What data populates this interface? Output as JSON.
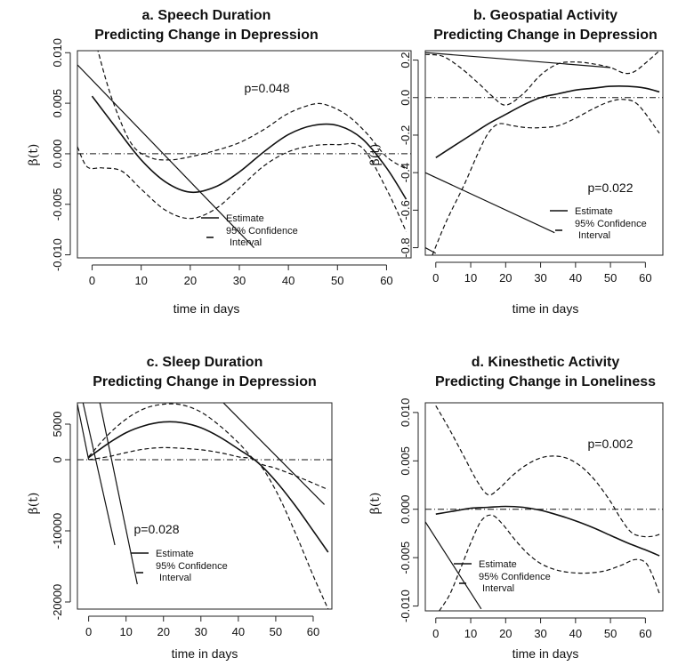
{
  "chart_data": [
    {
      "type": "line",
      "panel": "a",
      "title": [
        "a. Speech Duration",
        "Predicting Change in Depression"
      ],
      "xlabel": "time in days",
      "ylabel": "β(t)",
      "xlim": [
        -3,
        65
      ],
      "ylim": [
        -0.0103,
        0.0102
      ],
      "xticks": [
        0,
        10,
        20,
        30,
        40,
        50,
        60
      ],
      "yticks": [
        -0.01,
        -0.005,
        0.0,
        0.005,
        0.01
      ],
      "ytick_labels": [
        "-0.010",
        "-0.005",
        "0.000",
        "0.005",
        "0.010"
      ],
      "reference_line": 0,
      "annotation": "p=0.048",
      "legend": {
        "estimate": "Estimate",
        "ci": [
          "95% Confidence",
          "Interval"
        ]
      },
      "series": [
        {
          "name": "Estimate",
          "style": "solid",
          "x": [
            0,
            5,
            10,
            15,
            20,
            25,
            30,
            35,
            40,
            45,
            50,
            55,
            60,
            64
          ],
          "y": [
            0.0057,
            0.0025,
            -0.0006,
            -0.0028,
            -0.0038,
            -0.0033,
            -0.0018,
            0.0002,
            0.0019,
            0.0028,
            0.0028,
            0.0015,
            -0.0014,
            -0.0045
          ]
        },
        {
          "name": "95% Confidence Interval (upper)",
          "style": "dashed",
          "x": [
            1,
            4,
            8,
            12,
            16,
            20,
            25,
            30,
            35,
            40,
            45,
            48,
            52,
            56,
            60,
            64
          ],
          "y": [
            0.0105,
            0.0055,
            0.001,
            -0.0004,
            -0.0006,
            -0.0003,
            0.0003,
            0.0011,
            0.0024,
            0.004,
            0.0049,
            0.0048,
            0.0038,
            0.002,
            -0.0003,
            -0.0015
          ]
        },
        {
          "name": "95% Confidence Interval (lower)",
          "style": "dashed",
          "x": [
            -3,
            -1,
            2,
            6,
            10,
            15,
            20,
            25,
            30,
            35,
            40,
            45,
            50,
            55,
            60,
            64
          ],
          "y": [
            0.0007,
            -0.0013,
            -0.0014,
            -0.0017,
            -0.0035,
            -0.0056,
            -0.0064,
            -0.0055,
            -0.0034,
            -0.0012,
            0.0002,
            0.0008,
            0.0009,
            0.0006,
            -0.0035,
            -0.0077
          ]
        }
      ],
      "extra_lines": [
        {
          "style": "solid",
          "x": [
            -3,
            33
          ],
          "y": [
            0.0088,
            -0.0093
          ]
        }
      ]
    },
    {
      "type": "line",
      "panel": "b",
      "title": [
        "b. Geospatial Activity",
        "Predicting Change in Depression"
      ],
      "xlabel": "time in days",
      "ylabel": "β(t)",
      "xlim": [
        -3,
        65
      ],
      "ylim": [
        -0.84,
        0.25
      ],
      "xticks": [
        0,
        10,
        20,
        30,
        40,
        50,
        60
      ],
      "yticks": [
        -0.8,
        -0.6,
        -0.4,
        -0.2,
        0.0,
        0.2
      ],
      "ytick_labels": [
        "-0.8",
        "-0.6",
        "-0.4",
        "-0.2",
        "0.0",
        "0.2"
      ],
      "reference_line": 0,
      "annotation": "p=0.022",
      "legend": {
        "estimate": "Estimate",
        "ci": [
          "95% Confidence",
          "Interval"
        ]
      },
      "series": [
        {
          "name": "Estimate",
          "style": "solid",
          "x": [
            0,
            5,
            10,
            15,
            20,
            25,
            30,
            35,
            40,
            45,
            50,
            55,
            60,
            64
          ],
          "y": [
            -0.32,
            -0.26,
            -0.2,
            -0.14,
            -0.09,
            -0.04,
            0.0,
            0.02,
            0.04,
            0.05,
            0.06,
            0.06,
            0.05,
            0.03
          ]
        },
        {
          "name": "95% Confidence Interval (upper)",
          "style": "dashed",
          "x": [
            -3,
            2,
            7,
            12,
            16,
            20,
            25,
            30,
            35,
            40,
            45,
            50,
            54,
            57,
            61,
            64
          ],
          "y": [
            0.23,
            0.22,
            0.16,
            0.08,
            0.01,
            -0.04,
            0.02,
            0.12,
            0.18,
            0.19,
            0.18,
            0.16,
            0.13,
            0.14,
            0.2,
            0.25
          ]
        },
        {
          "name": "95% Confidence Interval (lower)",
          "style": "dashed",
          "x": [
            -1,
            3,
            8,
            12,
            15,
            18,
            22,
            26,
            30,
            35,
            40,
            45,
            50,
            54,
            58,
            64
          ],
          "y": [
            -0.84,
            -0.66,
            -0.47,
            -0.3,
            -0.19,
            -0.14,
            -0.15,
            -0.16,
            -0.16,
            -0.15,
            -0.11,
            -0.06,
            -0.02,
            -0.01,
            -0.04,
            -0.19
          ]
        }
      ],
      "extra_lines": [
        {
          "style": "solid",
          "x": [
            -3,
            50
          ],
          "y": [
            0.24,
            0.16
          ]
        },
        {
          "style": "solid",
          "x": [
            -3,
            34
          ],
          "y": [
            -0.4,
            -0.72
          ]
        },
        {
          "style": "solid",
          "x": [
            -3,
            0
          ],
          "y": [
            -0.8,
            -0.83
          ]
        }
      ]
    },
    {
      "type": "line",
      "panel": "c",
      "title": [
        "c. Sleep Duration",
        "Predicting Change in Depression"
      ],
      "xlabel": "time in days",
      "ylabel": "β(t)",
      "xlim": [
        -3,
        65
      ],
      "ylim": [
        -21000,
        8000
      ],
      "xticks": [
        0,
        10,
        20,
        30,
        40,
        50,
        60
      ],
      "yticks": [
        -20000,
        -10000,
        0,
        5000
      ],
      "ytick_labels": [
        "-20000",
        "-10000",
        "0",
        "5000"
      ],
      "reference_line": 0,
      "annotation": "p=0.028",
      "legend": {
        "estimate": "Estimate",
        "ci": [
          "95% Confidence",
          "Interval"
        ]
      },
      "series": [
        {
          "name": "Estimate",
          "style": "solid",
          "x": [
            0,
            5,
            10,
            15,
            20,
            25,
            30,
            35,
            40,
            45,
            50,
            55,
            60,
            64
          ],
          "y": [
            300,
            2200,
            3800,
            4800,
            5300,
            5200,
            4500,
            3200,
            1500,
            -300,
            -3000,
            -6300,
            -10000,
            -13000
          ]
        },
        {
          "name": "95% Confidence Interval (upper)",
          "style": "dashed",
          "x": [
            0,
            5,
            10,
            15,
            20,
            25,
            30,
            35,
            40,
            45,
            50,
            55,
            60,
            64
          ],
          "y": [
            400,
            3400,
            5700,
            7200,
            7800,
            7700,
            6700,
            4800,
            2400,
            -300,
            -1200,
            -2200,
            -3300,
            -4200
          ]
        },
        {
          "name": "95% Confidence Interval (lower)",
          "style": "dashed",
          "x": [
            0,
            5,
            10,
            15,
            20,
            25,
            30,
            35,
            40,
            45,
            50,
            55,
            60,
            64
          ],
          "y": [
            0,
            400,
            1000,
            1500,
            1700,
            1600,
            1400,
            1000,
            400,
            -300,
            -4300,
            -10000,
            -16300,
            -21000
          ]
        }
      ],
      "extra_lines": [
        {
          "style": "solid",
          "x": [
            -1.5,
            7
          ],
          "y": [
            8000,
            -12000
          ]
        },
        {
          "style": "solid",
          "x": [
            3,
            13
          ],
          "y": [
            8000,
            -17500
          ]
        },
        {
          "style": "solid",
          "x": [
            36,
            63
          ],
          "y": [
            8000,
            -6300
          ]
        },
        {
          "style": "solid",
          "x": [
            -3,
            0
          ],
          "y": [
            7800,
            0
          ]
        }
      ]
    },
    {
      "type": "line",
      "panel": "d",
      "title": [
        "d. Kinesthetic Activity",
        "Predicting Change in Loneliness"
      ],
      "xlabel": "time in days",
      "ylabel": "β(t)",
      "xlim": [
        -3,
        65
      ],
      "ylim": [
        -0.0105,
        0.011
      ],
      "xticks": [
        0,
        10,
        20,
        30,
        40,
        50,
        60
      ],
      "yticks": [
        -0.01,
        -0.005,
        0.0,
        0.005,
        0.01
      ],
      "ytick_labels": [
        "-0.010",
        "-0.005",
        "0.000",
        "0.005",
        "0.010"
      ],
      "reference_line": 0,
      "annotation": "p=0.002",
      "legend": {
        "estimate": "Estimate",
        "ci": [
          "95% Confidence",
          "Interval"
        ]
      },
      "series": [
        {
          "name": "Estimate",
          "style": "solid",
          "x": [
            0,
            5,
            10,
            15,
            20,
            25,
            30,
            35,
            40,
            45,
            50,
            55,
            60,
            64
          ],
          "y": [
            -0.0005,
            -0.0002,
            0.0001,
            0.0002,
            0.0003,
            0.0002,
            -0.0001,
            -0.0006,
            -0.0012,
            -0.0019,
            -0.0027,
            -0.0035,
            -0.0042,
            -0.0048
          ]
        },
        {
          "name": "95% Confidence Interval (upper)",
          "style": "dashed",
          "x": [
            0,
            4,
            8,
            12,
            15,
            18,
            22,
            26,
            30,
            34,
            38,
            42,
            46,
            50,
            53,
            56,
            59,
            62,
            64
          ],
          "y": [
            0.0107,
            0.0082,
            0.0055,
            0.0028,
            0.0015,
            0.0021,
            0.0035,
            0.0046,
            0.0053,
            0.0055,
            0.0052,
            0.0043,
            0.0028,
            0.0008,
            -0.001,
            -0.0024,
            -0.0028,
            -0.0028,
            -0.0026
          ]
        },
        {
          "name": "95% Confidence Interval (lower)",
          "style": "dashed",
          "x": [
            1,
            4,
            7,
            10,
            13,
            16,
            19,
            23,
            27,
            31,
            36,
            42,
            48,
            53,
            57,
            60,
            62,
            64
          ],
          "y": [
            -0.0105,
            -0.0088,
            -0.0062,
            -0.0035,
            -0.0012,
            -0.0006,
            -0.0015,
            -0.0033,
            -0.0048,
            -0.0058,
            -0.0064,
            -0.0066,
            -0.0064,
            -0.0058,
            -0.0052,
            -0.0055,
            -0.0068,
            -0.0087
          ]
        }
      ],
      "extra_lines": [
        {
          "style": "solid",
          "x": [
            -3,
            13
          ],
          "y": [
            -0.0013,
            -0.0103
          ]
        }
      ]
    }
  ]
}
